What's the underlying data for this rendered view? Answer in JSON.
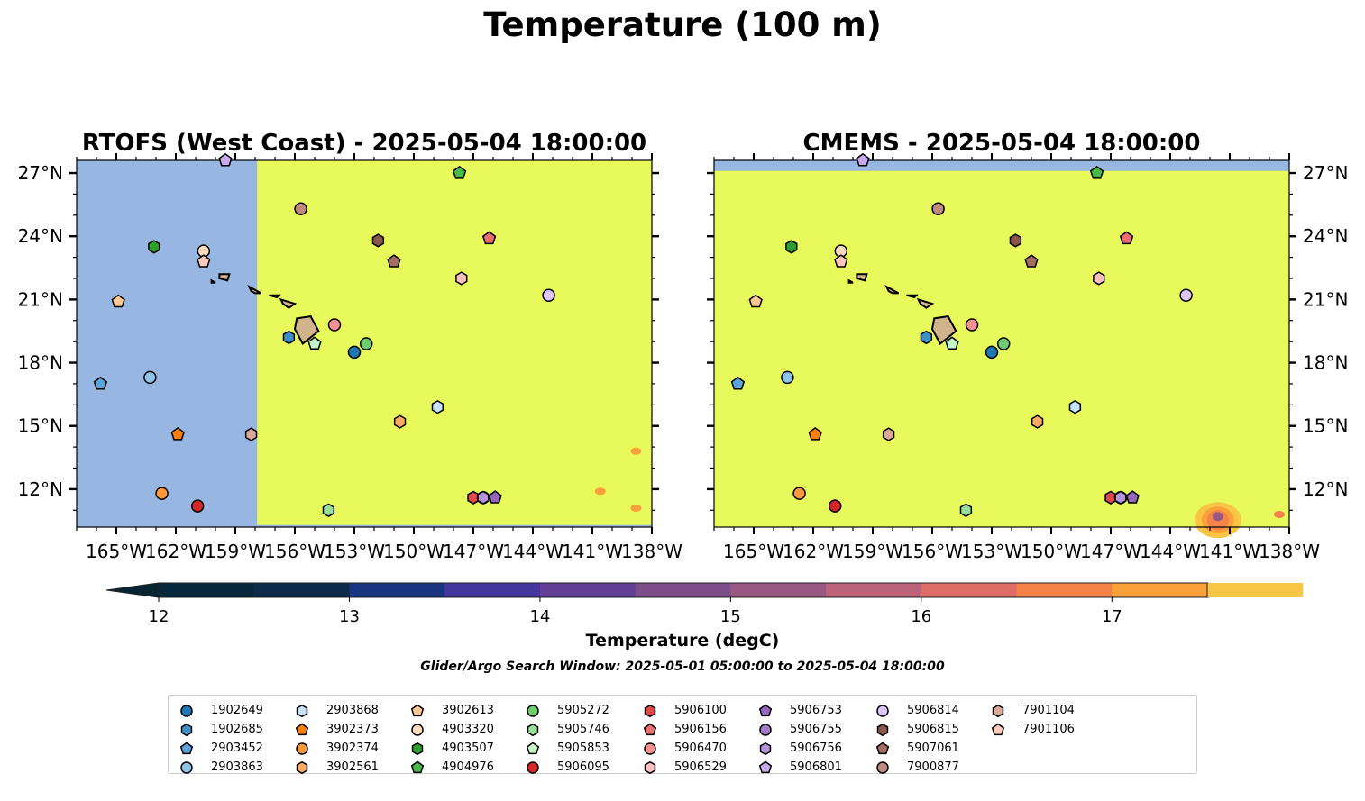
{
  "suptitle": "Temperature (100 m)",
  "chart_data": {
    "type": "heatmap",
    "title": "Temperature (100 m)",
    "panels": [
      {
        "title": "RTOFS (West Coast) - 2025-05-04 18:00:00",
        "lon_range": [
          -167,
          -138
        ],
        "lat_range": [
          10.2,
          27.6
        ],
        "lat_tick_side": "left",
        "field_note": "Uniform >17.5 degC east of ~157.9°W; west of ~157.9°W no data (masked, light blue). Small 17–17.5 degC patches near 138.5°W 13.5°N and 140.5°W 11.8°N.",
        "nodata_regions": [
          {
            "lon": [
              -167,
              -157.9
            ],
            "lat": [
              10.2,
              27.6
            ]
          },
          {
            "lon": [
              -167,
              -138
            ],
            "lat": [
              10.2,
              10.3
            ]
          }
        ],
        "warm_patches": [
          {
            "lon": -138.8,
            "lat": 13.8,
            "value": 17.2
          },
          {
            "lon": -140.6,
            "lat": 11.9,
            "value": 17.2
          },
          {
            "lon": -138.8,
            "lat": 11.1,
            "value": 17.2
          }
        ]
      },
      {
        "title": "CMEMS - 2025-05-04 18:00:00",
        "lon_range": [
          -167,
          -138
        ],
        "lat_range": [
          10.2,
          27.6
        ],
        "lat_tick_side": "right",
        "field_note": "Mostly >17.5 degC; no data strip north of ~27.1°N; warmer anomaly near 141.5°W 10.7°N (15–17 degC).",
        "nodata_regions": [
          {
            "lon": [
              -167,
              -138
            ],
            "lat": [
              27.1,
              27.6
            ]
          }
        ],
        "warm_patches": [
          {
            "lon": -141.6,
            "lat": 10.7,
            "value": 15.3
          },
          {
            "lon": -138.5,
            "lat": 10.8,
            "value": 16.5
          }
        ]
      }
    ],
    "xticks": [
      "165°W",
      "162°W",
      "159°W",
      "156°W",
      "153°W",
      "150°W",
      "147°W",
      "144°W",
      "141°W",
      "138°W"
    ],
    "xtick_values": [
      -165,
      -162,
      -159,
      -156,
      -153,
      -150,
      -147,
      -144,
      -141,
      -138
    ],
    "yticks": [
      "12°N",
      "15°N",
      "18°N",
      "21°N",
      "24°N",
      "27°N"
    ],
    "ytick_values": [
      12,
      15,
      18,
      21,
      24,
      27
    ],
    "colorbar": {
      "label": "Temperature (degC)",
      "min": 12,
      "max": 17.5,
      "step": 0.5,
      "ticks": [
        12,
        13,
        14,
        15,
        16,
        17
      ],
      "extend": "both",
      "colors": [
        "#07273f",
        "#0c2a4a",
        "#1a357f",
        "#44369c",
        "#633e96",
        "#7d4d8a",
        "#9b5784",
        "#bc6279",
        "#de6c67",
        "#f38349",
        "#fca03a",
        "#f8c644"
      ],
      "under_color": "#062432",
      "over_color": "#e8fa5b",
      "nodata_color": "#98b6e2"
    },
    "land_color": "#d2b48c",
    "search_window": "Glider/Argo Search Window: 2025-05-01 05:00:00 to 2025-05-04 18:00:00",
    "floats": [
      {
        "id": "1902649",
        "marker": "circle",
        "color": "#1f77b4",
        "lon": -153.0,
        "lat": 18.5
      },
      {
        "id": "1902685",
        "marker": "hexagon",
        "color": "#3d8fc8",
        "lon": -156.3,
        "lat": 19.2
      },
      {
        "id": "2903452",
        "marker": "pentagon",
        "color": "#5ba3d8",
        "lon": -165.8,
        "lat": 17.0
      },
      {
        "id": "2903863",
        "marker": "circle",
        "color": "#8ec4ea",
        "lon": -163.3,
        "lat": 17.3
      },
      {
        "id": "2903868",
        "marker": "hexagon",
        "color": "#c6e3f7",
        "lon": -148.8,
        "lat": 15.9
      },
      {
        "id": "3902373",
        "marker": "pentagon",
        "color": "#ff7f0e",
        "lon": -161.9,
        "lat": 14.6
      },
      {
        "id": "3902374",
        "marker": "circle",
        "color": "#ff9a3c",
        "lon": -162.7,
        "lat": 11.8
      },
      {
        "id": "3902561",
        "marker": "hexagon",
        "color": "#ffaa62",
        "lon": -150.7,
        "lat": 15.2
      },
      {
        "id": "3902613",
        "marker": "pentagon",
        "color": "#ffc896",
        "lon": -164.9,
        "lat": 20.9
      },
      {
        "id": "4903320",
        "marker": "circle",
        "color": "#ffdcbd",
        "lon": -160.6,
        "lat": 23.3
      },
      {
        "id": "4903507",
        "marker": "hexagon",
        "color": "#2ca02c",
        "lon": -163.1,
        "lat": 23.5
      },
      {
        "id": "4904976",
        "marker": "pentagon",
        "color": "#48b848",
        "lon": -147.7,
        "lat": 27.0
      },
      {
        "id": "5905272",
        "marker": "circle",
        "color": "#6fcc6f",
        "lon": -152.4,
        "lat": 18.9
      },
      {
        "id": "5905746",
        "marker": "hexagon",
        "color": "#98df98",
        "lon": -154.3,
        "lat": 11.0
      },
      {
        "id": "5905853",
        "marker": "pentagon",
        "color": "#c6f5c6",
        "lon": -155.0,
        "lat": 18.9
      },
      {
        "id": "5906095",
        "marker": "circle",
        "color": "#d62728",
        "lon": -160.9,
        "lat": 11.2
      },
      {
        "id": "5906100",
        "marker": "hexagon",
        "color": "#e24a4a",
        "lon": -147.0,
        "lat": 11.6
      },
      {
        "id": "5906156",
        "marker": "pentagon",
        "color": "#ee6e6e",
        "lon": -146.2,
        "lat": 23.9
      },
      {
        "id": "5906470",
        "marker": "circle",
        "color": "#f59190",
        "lon": -154.0,
        "lat": 19.8
      },
      {
        "id": "5906529",
        "marker": "hexagon",
        "color": "#ffbfbf",
        "lon": -147.6,
        "lat": 22.0
      },
      {
        "id": "5906753",
        "marker": "pentagon",
        "color": "#9467bd",
        "lon": -145.9,
        "lat": 11.6
      },
      {
        "id": "5906755",
        "marker": "circle",
        "color": "#a47ccc",
        "lon": -146.5,
        "lat": 11.6
      },
      {
        "id": "5906756",
        "marker": "hexagon",
        "color": "#b694db",
        "lon": -146.5,
        "lat": 11.6
      },
      {
        "id": "5906801",
        "marker": "pentagon",
        "color": "#c9aaee",
        "lon": -159.5,
        "lat": 27.6
      },
      {
        "id": "5906814",
        "marker": "circle",
        "color": "#dcc6fa",
        "lon": -143.2,
        "lat": 21.2
      },
      {
        "id": "5906815",
        "marker": "hexagon",
        "color": "#8c564b",
        "lon": -151.8,
        "lat": 23.8
      },
      {
        "id": "5907061",
        "marker": "pentagon",
        "color": "#a66e63",
        "lon": -151.0,
        "lat": 22.8
      },
      {
        "id": "7900877",
        "marker": "circle",
        "color": "#c08a7e",
        "lon": -155.7,
        "lat": 25.3
      },
      {
        "id": "7901104",
        "marker": "hexagon",
        "color": "#dba899",
        "lon": -158.2,
        "lat": 14.6
      },
      {
        "id": "7901106",
        "marker": "pentagon",
        "color": "#ffc9bd",
        "lon": -160.6,
        "lat": 22.8
      }
    ]
  }
}
